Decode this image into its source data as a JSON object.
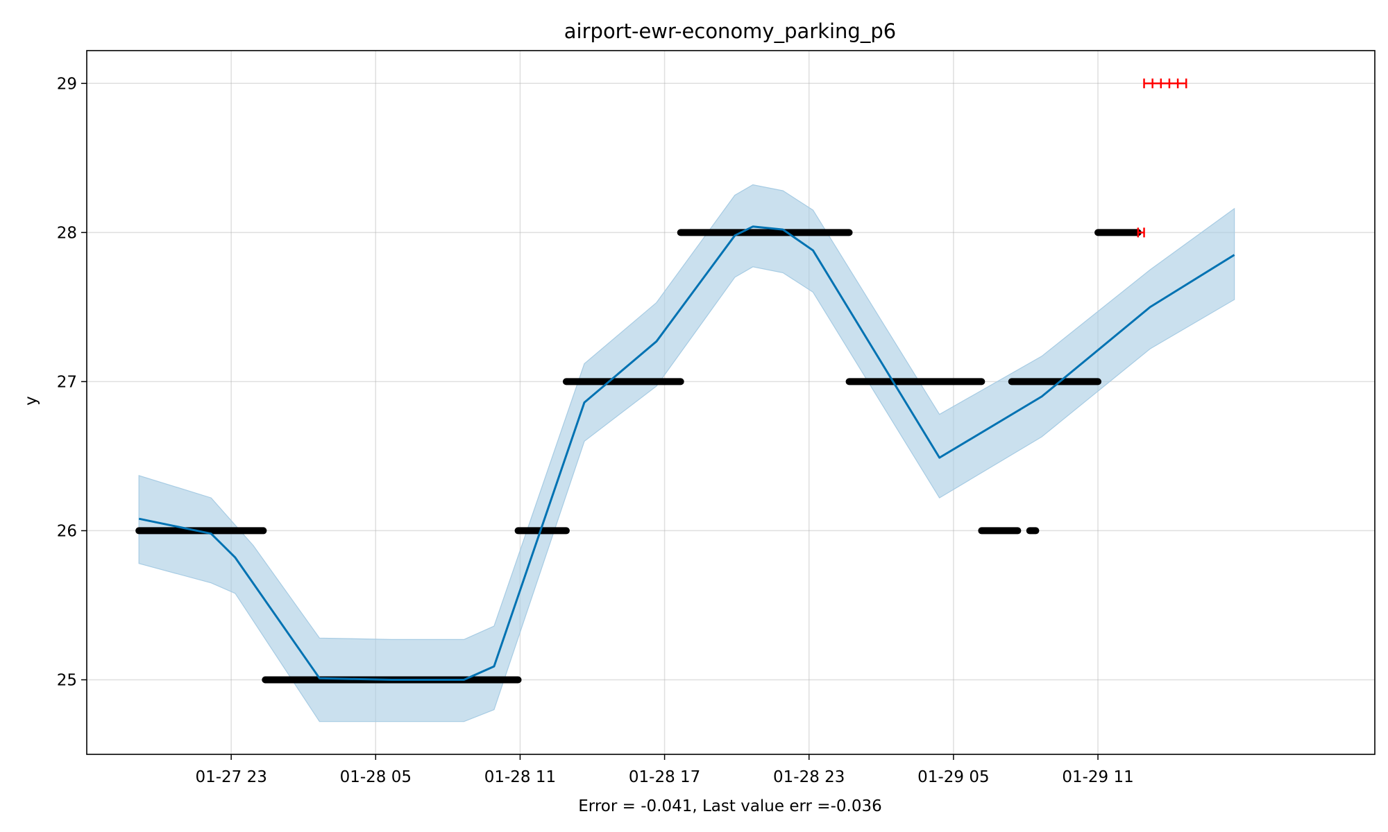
{
  "chart_data": {
    "type": "line",
    "title": "airport-ewr-economy_parking_p6",
    "xlabel": "Error = -0.041, Last value err =-0.036",
    "ylabel": "y",
    "x_tick_labels": [
      "01-27 23",
      "01-28 05",
      "01-28 11",
      "01-28 17",
      "01-28 23",
      "01-29 05",
      "01-29 11"
    ],
    "x_ticks": [
      "2024-01-27 23:00",
      "2024-01-28 05:00",
      "2024-01-28 11:00",
      "2024-01-28 17:00",
      "2024-01-28 23:00",
      "2024-01-29 05:00",
      "2024-01-29 11:00"
    ],
    "xlim": [
      "2024-01-27 17:00",
      "2024-01-29 22:30"
    ],
    "y_ticks": [
      25,
      26,
      27,
      28,
      29
    ],
    "ylim": [
      24.5,
      29.22
    ],
    "grid": true,
    "colors": {
      "forecast": "#0072b2",
      "interval": "#a6cbe3",
      "observed": "#000000",
      "test": "#ff0000"
    },
    "series": [
      {
        "kind": "forecast",
        "points": [
          [
            "2024-01-27 19:10",
            26.08
          ],
          [
            "2024-01-27 22:10",
            25.98
          ],
          [
            "2024-01-27 23:10",
            25.82
          ],
          [
            "2024-01-28 02:40",
            25.01
          ],
          [
            "2024-01-28 05:40",
            25.0
          ],
          [
            "2024-01-28 08:40",
            25.0
          ],
          [
            "2024-01-28 09:55",
            25.09
          ],
          [
            "2024-01-28 13:40",
            26.86
          ],
          [
            "2024-01-28 16:40",
            27.27
          ],
          [
            "2024-01-28 19:55",
            27.98
          ],
          [
            "2024-01-28 20:40",
            28.04
          ],
          [
            "2024-01-28 21:55",
            28.02
          ],
          [
            "2024-01-28 23:10",
            27.88
          ],
          [
            "2024-01-29 04:25",
            26.49
          ],
          [
            "2024-01-29 08:40",
            26.9
          ],
          [
            "2024-01-29 13:10",
            27.5
          ],
          [
            "2024-01-29 16:40",
            27.85
          ]
        ]
      },
      {
        "kind": "interval",
        "upper": [
          [
            "2024-01-27 19:10",
            26.37
          ],
          [
            "2024-01-27 22:10",
            26.22
          ],
          [
            "2024-01-27 23:55",
            25.9
          ],
          [
            "2024-01-28 02:40",
            25.28
          ],
          [
            "2024-01-28 05:40",
            25.27
          ],
          [
            "2024-01-28 08:40",
            25.27
          ],
          [
            "2024-01-28 09:55",
            25.36
          ],
          [
            "2024-01-28 13:40",
            27.12
          ],
          [
            "2024-01-28 16:40",
            27.53
          ],
          [
            "2024-01-28 19:55",
            28.25
          ],
          [
            "2024-01-28 20:40",
            28.32
          ],
          [
            "2024-01-28 21:55",
            28.28
          ],
          [
            "2024-01-28 23:10",
            28.15
          ],
          [
            "2024-01-29 04:25",
            26.78
          ],
          [
            "2024-01-29 08:40",
            27.17
          ],
          [
            "2024-01-29 13:10",
            27.75
          ],
          [
            "2024-01-29 16:40",
            28.16
          ]
        ],
        "lower": [
          [
            "2024-01-27 19:10",
            25.78
          ],
          [
            "2024-01-27 22:10",
            25.65
          ],
          [
            "2024-01-27 23:10",
            25.58
          ],
          [
            "2024-01-28 02:40",
            24.72
          ],
          [
            "2024-01-28 05:40",
            24.72
          ],
          [
            "2024-01-28 08:40",
            24.72
          ],
          [
            "2024-01-28 09:55",
            24.8
          ],
          [
            "2024-01-28 13:40",
            26.6
          ],
          [
            "2024-01-28 16:40",
            26.97
          ],
          [
            "2024-01-28 19:55",
            27.7
          ],
          [
            "2024-01-28 20:40",
            27.77
          ],
          [
            "2024-01-28 21:55",
            27.73
          ],
          [
            "2024-01-28 23:10",
            27.6
          ],
          [
            "2024-01-29 04:25",
            26.22
          ],
          [
            "2024-01-29 08:40",
            26.63
          ],
          [
            "2024-01-29 13:10",
            27.22
          ],
          [
            "2024-01-29 16:40",
            27.55
          ]
        ]
      },
      {
        "kind": "observed",
        "segments": [
          [
            "2024-01-27 19:10",
            "2024-01-28 00:20",
            26
          ],
          [
            "2024-01-28 00:25",
            "2024-01-28 10:55",
            25
          ],
          [
            "2024-01-28 10:55",
            "2024-01-28 12:55",
            26
          ],
          [
            "2024-01-28 12:55",
            "2024-01-28 17:40",
            27
          ],
          [
            "2024-01-28 17:40",
            "2024-01-29 00:40",
            28
          ],
          [
            "2024-01-29 00:40",
            "2024-01-29 06:10",
            27
          ],
          [
            "2024-01-29 06:10",
            "2024-01-29 07:40",
            26
          ],
          [
            "2024-01-29 08:10",
            "2024-01-29 08:25",
            26
          ],
          [
            "2024-01-29 07:25",
            "2024-01-29 11:00",
            27
          ],
          [
            "2024-01-29 11:00",
            "2024-01-29 12:40",
            28
          ]
        ]
      },
      {
        "kind": "test",
        "segments": [
          [
            "2024-01-29 12:40",
            "2024-01-29 12:55",
            28
          ],
          [
            "2024-01-29 12:55",
            "2024-01-29 14:40",
            29
          ]
        ]
      }
    ]
  }
}
